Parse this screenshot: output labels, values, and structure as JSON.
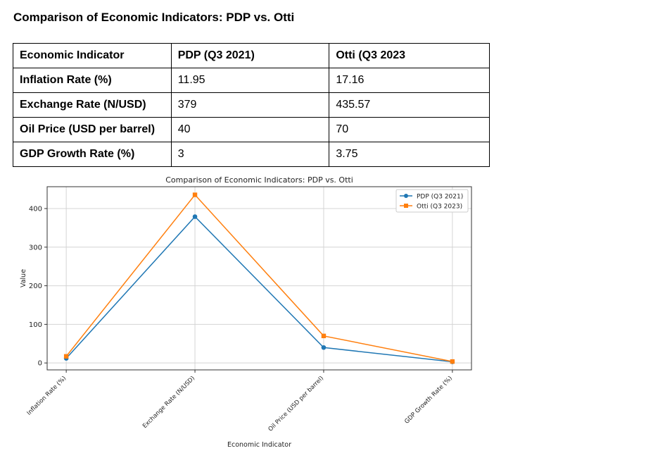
{
  "document": {
    "title": "Comparison of Economic Indicators: PDP vs. Otti"
  },
  "table": {
    "headers": [
      "Economic Indicator",
      "PDP (Q3 2021)",
      "Otti (Q3 2023"
    ],
    "rows": [
      [
        "Inflation Rate (%)",
        "11.95",
        "17.16"
      ],
      [
        "Exchange Rate (N/USD)",
        "379",
        "435.57"
      ],
      [
        "Oil Price (USD per barrel)",
        "40",
        "70"
      ],
      [
        "GDP Growth Rate (%)",
        "3",
        "3.75"
      ]
    ]
  },
  "chart_data": {
    "type": "line",
    "title": "Comparison of Economic Indicators: PDP vs. Otti",
    "xlabel": "Economic Indicator",
    "ylabel": "Value",
    "categories": [
      "Inflation Rate (%)",
      "Exchange Rate (N/USD)",
      "Oil Price (USD per barrel)",
      "GDP Growth Rate (%)"
    ],
    "series": [
      {
        "name": "PDP (Q3 2021)",
        "values": [
          11.95,
          379,
          40,
          3
        ],
        "color": "#1f77b4",
        "marker": "circle"
      },
      {
        "name": "Otti (Q3 2023)",
        "values": [
          17.16,
          435.57,
          70,
          3.75
        ],
        "color": "#ff7f0e",
        "marker": "square"
      }
    ],
    "ylim": [
      -17.95,
      456.6
    ],
    "yticks": [
      0,
      100,
      200,
      300,
      400
    ],
    "grid": true,
    "legend_position": "top-right"
  }
}
